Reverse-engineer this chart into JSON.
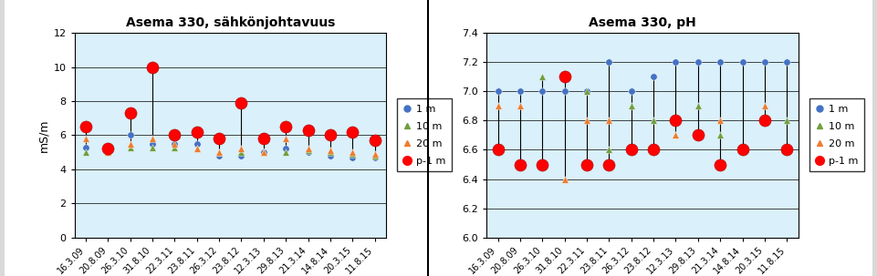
{
  "categories": [
    "16.3.09",
    "20.8.09",
    "26.3.10",
    "31.8.10",
    "22.3.11",
    "23.8.11",
    "26.3.12",
    "23.8.12",
    "12.3.13",
    "29.8.13",
    "21.3.14",
    "14.8.14",
    "20.3.15",
    "11.8.15"
  ],
  "chart1": {
    "title": "Asema 330, sähkönjohtavuus",
    "ylabel": "mS/m",
    "ylim": [
      0,
      12
    ],
    "yticks": [
      0,
      2,
      4,
      6,
      8,
      10,
      12
    ],
    "series": {
      "1m": [
        5.3,
        null,
        6.0,
        5.5,
        5.5,
        5.5,
        4.8,
        4.8,
        5.0,
        5.2,
        5.0,
        4.8,
        4.7,
        4.7
      ],
      "10m": [
        5.0,
        5.0,
        5.3,
        5.3,
        5.3,
        5.2,
        5.0,
        5.0,
        5.0,
        5.0,
        5.1,
        5.0,
        4.9,
        4.8
      ],
      "20m": [
        5.8,
        5.0,
        5.5,
        5.8,
        5.5,
        5.2,
        5.0,
        5.2,
        5.0,
        5.8,
        5.2,
        5.1,
        5.0,
        4.9
      ],
      "p1m": [
        6.5,
        5.2,
        7.3,
        10.0,
        6.0,
        6.2,
        5.8,
        7.9,
        5.8,
        6.5,
        6.3,
        6.0,
        6.2,
        5.7
      ]
    }
  },
  "chart2": {
    "title": "Asema 330, pH",
    "ylabel": "",
    "ylim": [
      6.0,
      7.4
    ],
    "yticks": [
      6.0,
      6.2,
      6.4,
      6.6,
      6.8,
      7.0,
      7.2,
      7.4
    ],
    "series": {
      "1m": [
        7.0,
        7.0,
        7.0,
        7.0,
        7.0,
        7.2,
        7.0,
        7.1,
        7.2,
        7.2,
        7.2,
        7.2,
        7.2,
        7.2
      ],
      "10m": [
        null,
        null,
        7.1,
        7.1,
        7.0,
        6.6,
        6.9,
        6.8,
        6.7,
        6.9,
        6.7,
        null,
        6.8,
        6.8
      ],
      "20m": [
        6.9,
        6.9,
        null,
        6.4,
        6.8,
        6.8,
        6.6,
        6.6,
        6.7,
        null,
        6.8,
        6.6,
        6.9,
        6.6
      ],
      "p1m": [
        6.6,
        6.5,
        6.5,
        7.1,
        6.5,
        6.5,
        6.6,
        6.6,
        6.8,
        6.7,
        6.5,
        6.6,
        6.8,
        6.6
      ]
    }
  },
  "colors": {
    "1m": "#4472C4",
    "10m": "#70A040",
    "20m": "#ED7D31",
    "p1m": "#FF0000"
  },
  "bg_color": "#DAF0FA",
  "outer_bg_left": "#D9D9D9",
  "panel_bg": "#FFFFFF",
  "sep_color": "#000000"
}
